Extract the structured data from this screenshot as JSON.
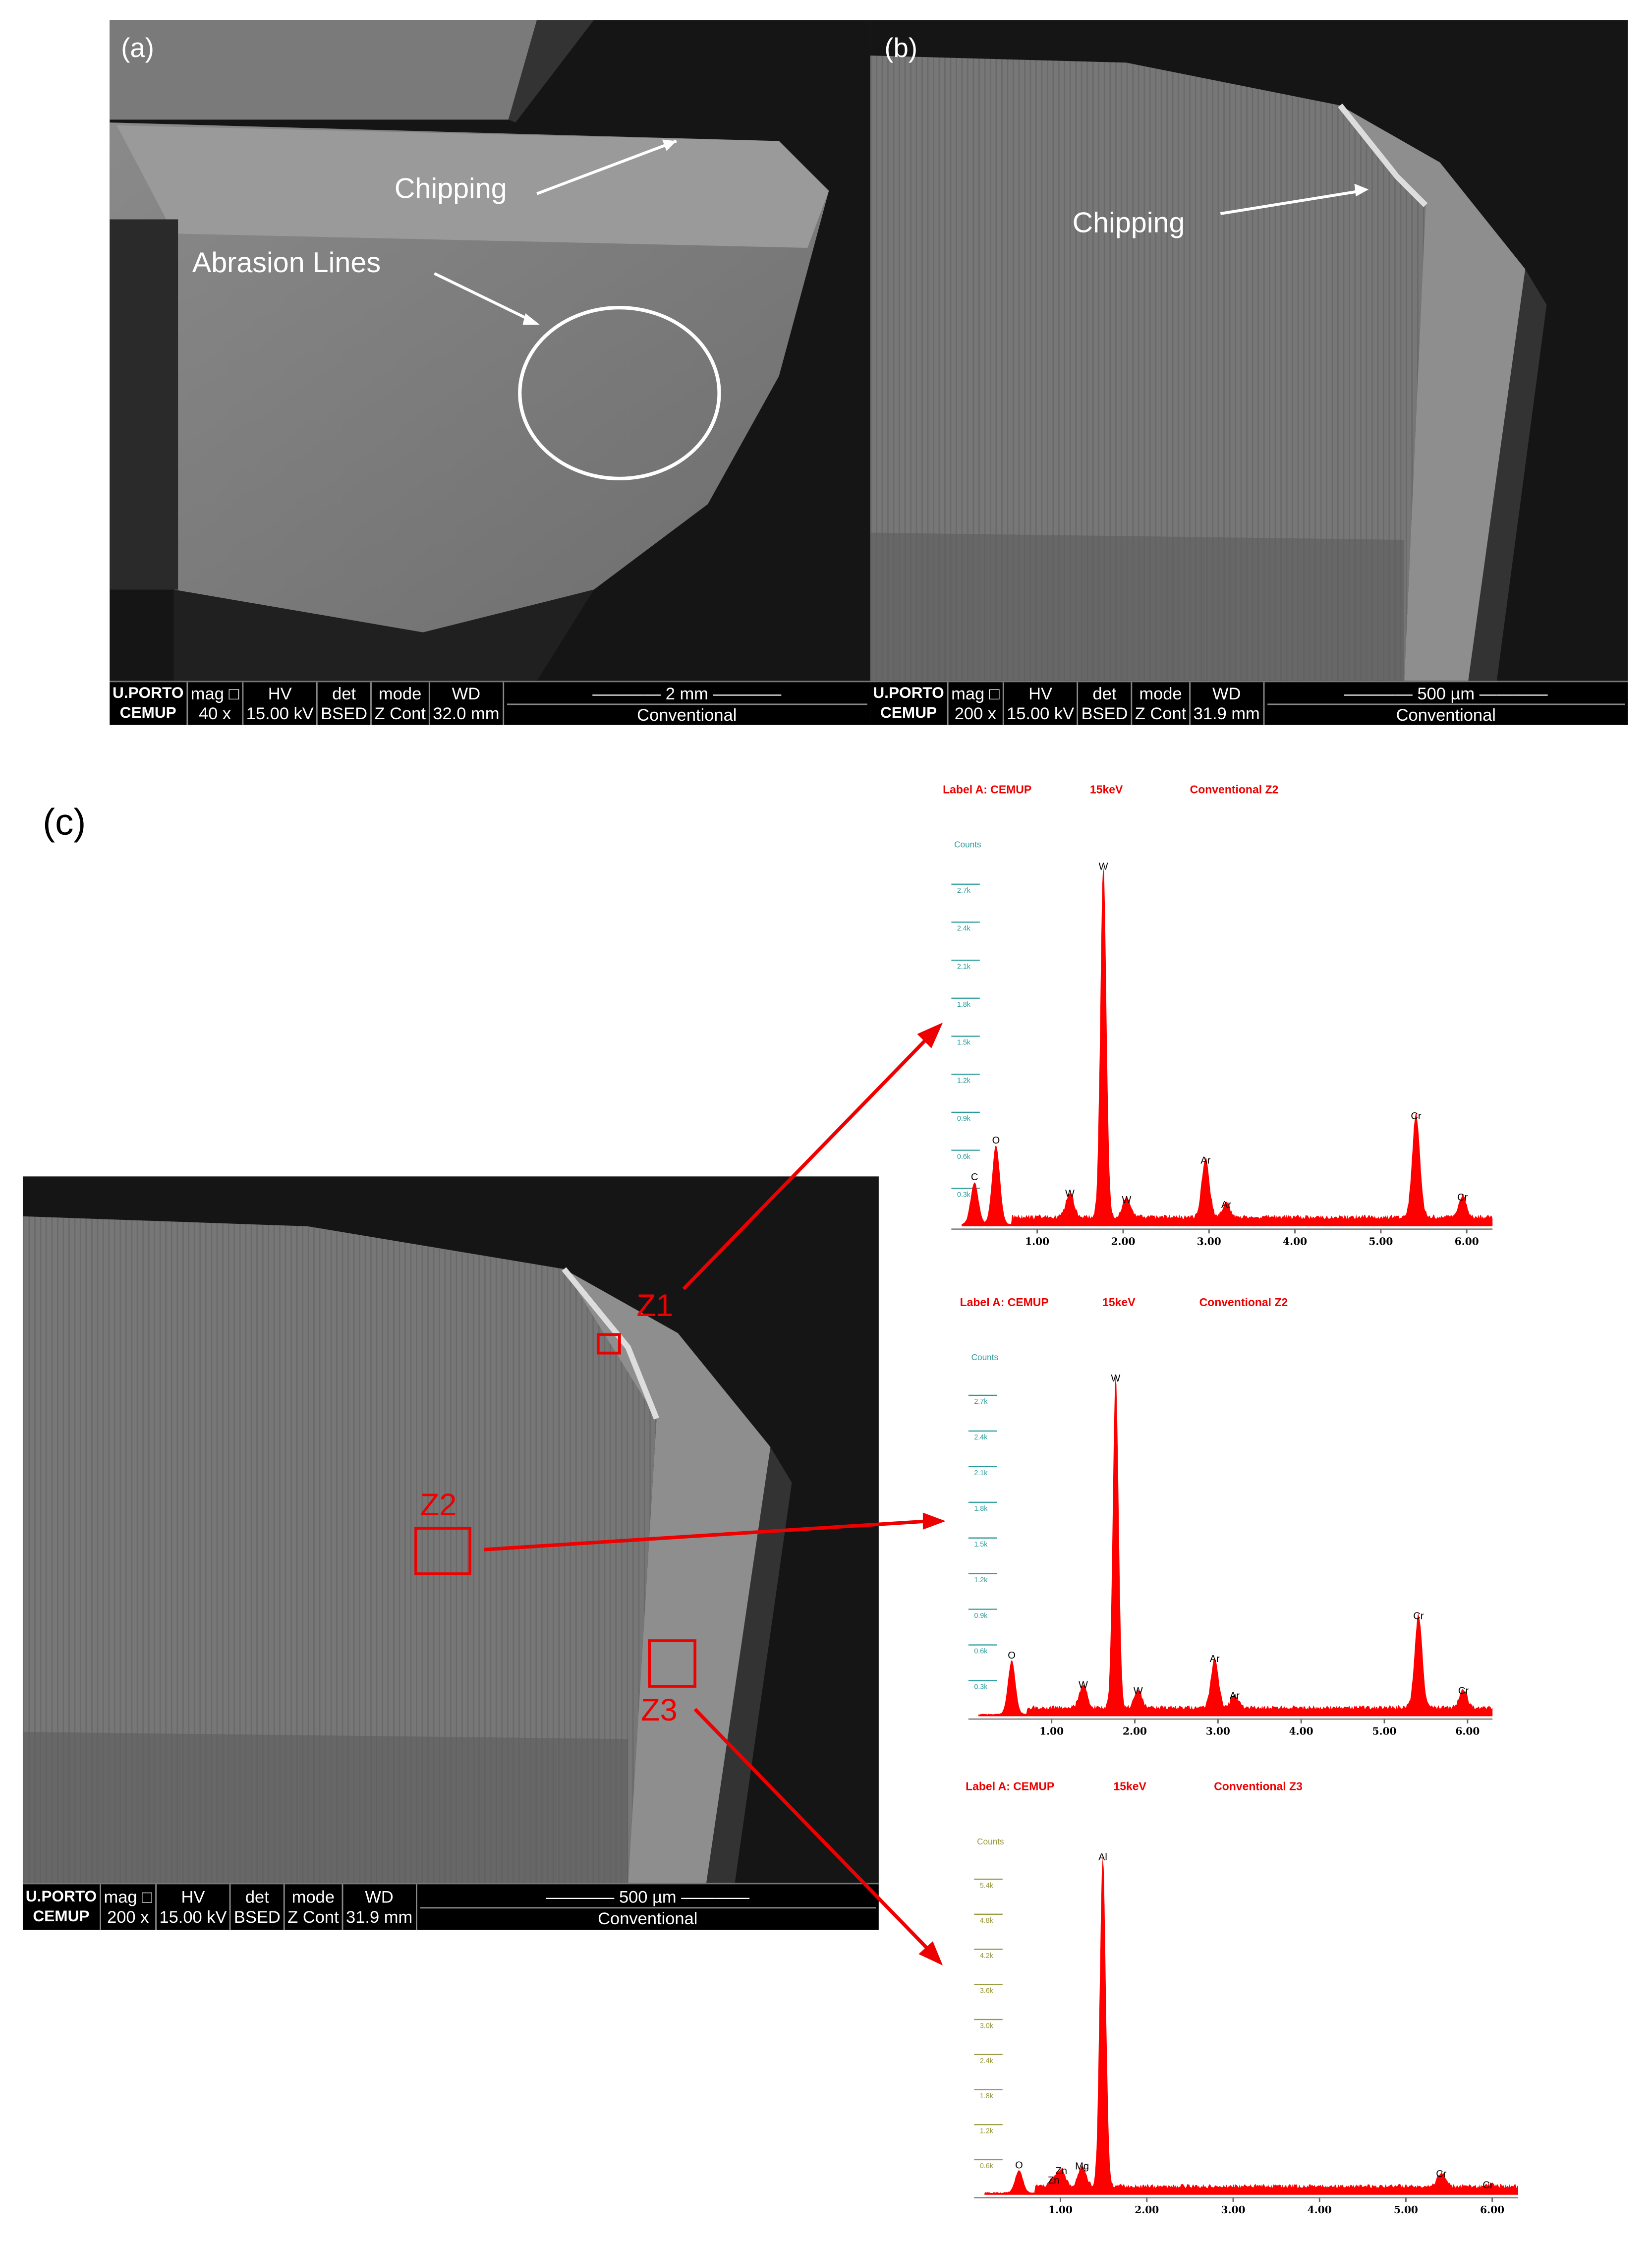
{
  "panels": {
    "a": {
      "label": "(a)",
      "annotations": {
        "chipping": "Chipping",
        "abrasion": "Abrasion Lines"
      },
      "infobar": {
        "logo_top": "U.PORTO",
        "logo_bottom": "CEMUP",
        "mag_label": "mag □",
        "mag": "40 x",
        "hv_label": "HV",
        "hv": "15.00 kV",
        "det_label": "det",
        "det": "BSED",
        "mode_label": "mode",
        "mode": "Z Cont",
        "wd_label": "WD",
        "wd": "32.0 mm",
        "scale": "2 mm",
        "mode_name": "Conventional"
      }
    },
    "b": {
      "label": "(b)",
      "annotations": {
        "chipping": "Chipping"
      },
      "infobar": {
        "logo_top": "U.PORTO",
        "logo_bottom": "CEMUP",
        "mag_label": "mag □",
        "mag": "200 x",
        "hv_label": "HV",
        "hv": "15.00 kV",
        "det_label": "det",
        "det": "BSED",
        "mode_label": "mode",
        "mode": "Z Cont",
        "wd_label": "WD",
        "wd": "31.9 mm",
        "scale": "500 µm",
        "mode_name": "Conventional"
      }
    },
    "c": {
      "label": "(c)",
      "zones": {
        "z1": "Z1",
        "z2": "Z2",
        "z3": "Z3"
      },
      "infobar": {
        "logo_top": "U.PORTO",
        "logo_bottom": "CEMUP",
        "mag_label": "mag □",
        "mag": "200 x",
        "hv_label": "HV",
        "hv": "15.00 kV",
        "det_label": "det",
        "det": "BSED",
        "mode_label": "mode",
        "mode": "Z Cont",
        "wd_label": "WD",
        "wd": "31.9 mm",
        "scale": "500 µm",
        "mode_name": "Conventional"
      }
    }
  },
  "colors": {
    "spectrum": "#ff0000",
    "annotation": "#e00000",
    "axis_teal": "#2a9a9a",
    "axis_olive": "#9a9a40"
  },
  "chart_data": [
    {
      "type": "area",
      "header": {
        "label": "Label A: CEMUP",
        "kv": "15keV",
        "name": "Conventional  Z2"
      },
      "ylabel": "Counts",
      "yticks": [
        "0.3k",
        "0.6k",
        "0.9k",
        "1.2k",
        "1.5k",
        "1.8k",
        "2.1k",
        "2.4k",
        "2.7k"
      ],
      "ytick_values": [
        300,
        600,
        900,
        1200,
        1500,
        1800,
        2100,
        2400,
        2700
      ],
      "xticks": [
        "1.00",
        "2.00",
        "3.00",
        "4.00",
        "5.00",
        "6.00"
      ],
      "xlim": [
        0,
        6.3
      ],
      "ylim": [
        0,
        2900
      ],
      "peaks": [
        {
          "element": "C",
          "x": 0.27,
          "y": 330
        },
        {
          "element": "O",
          "x": 0.52,
          "y": 620
        },
        {
          "element": "W",
          "x": 1.38,
          "y": 200
        },
        {
          "element": "W",
          "x": 1.77,
          "y": 2780
        },
        {
          "element": "W",
          "x": 2.04,
          "y": 150
        },
        {
          "element": "Ar",
          "x": 2.96,
          "y": 460
        },
        {
          "element": "Ar",
          "x": 3.2,
          "y": 110
        },
        {
          "element": "Cr",
          "x": 5.41,
          "y": 810
        },
        {
          "element": "Cr",
          "x": 5.95,
          "y": 170
        }
      ],
      "axis_color": "teal"
    },
    {
      "type": "area",
      "header": {
        "label": "Label A: CEMUP",
        "kv": "15keV",
        "name": "Conventional  Z2"
      },
      "ylabel": "Counts",
      "yticks": [
        "0.3k",
        "0.6k",
        "0.9k",
        "1.2k",
        "1.5k",
        "1.8k",
        "2.1k",
        "2.4k",
        "2.7k"
      ],
      "ytick_values": [
        300,
        600,
        900,
        1200,
        1500,
        1800,
        2100,
        2400,
        2700
      ],
      "xticks": [
        "1.00",
        "2.00",
        "3.00",
        "4.00",
        "5.00",
        "6.00"
      ],
      "xlim": [
        0,
        6.3
      ],
      "ylim": [
        0,
        2900
      ],
      "peaks": [
        {
          "element": "O",
          "x": 0.52,
          "y": 450
        },
        {
          "element": "W",
          "x": 1.38,
          "y": 200
        },
        {
          "element": "W",
          "x": 1.77,
          "y": 2780
        },
        {
          "element": "W",
          "x": 2.04,
          "y": 150
        },
        {
          "element": "Ar",
          "x": 2.96,
          "y": 420
        },
        {
          "element": "Ar",
          "x": 3.2,
          "y": 110
        },
        {
          "element": "Cr",
          "x": 5.41,
          "y": 780
        },
        {
          "element": "Cr",
          "x": 5.95,
          "y": 150
        }
      ],
      "axis_color": "teal"
    },
    {
      "type": "area",
      "header": {
        "label": "Label A: CEMUP",
        "kv": "15keV",
        "name": "Conventional  Z3"
      },
      "ylabel": "Counts",
      "yticks": [
        "0.6k",
        "1.2k",
        "1.8k",
        "2.4k",
        "3.0k",
        "3.6k",
        "4.2k",
        "4.8k",
        "5.4k"
      ],
      "ytick_values": [
        600,
        1200,
        1800,
        2400,
        3000,
        3600,
        4200,
        4800,
        5400
      ],
      "xticks": [
        "1.00",
        "2.00",
        "3.00",
        "4.00",
        "5.00",
        "6.00"
      ],
      "xlim": [
        0,
        6.3
      ],
      "ylim": [
        0,
        5800
      ],
      "peaks": [
        {
          "element": "O",
          "x": 0.52,
          "y": 380
        },
        {
          "element": "Zn",
          "x": 0.92,
          "y": 120
        },
        {
          "element": "Zn",
          "x": 1.01,
          "y": 280
        },
        {
          "element": "Mg",
          "x": 1.25,
          "y": 360
        },
        {
          "element": "Al",
          "x": 1.49,
          "y": 5650
        },
        {
          "element": "Cr",
          "x": 5.41,
          "y": 230
        },
        {
          "element": "Cr",
          "x": 5.95,
          "y": 40
        }
      ],
      "axis_color": "olive"
    }
  ]
}
